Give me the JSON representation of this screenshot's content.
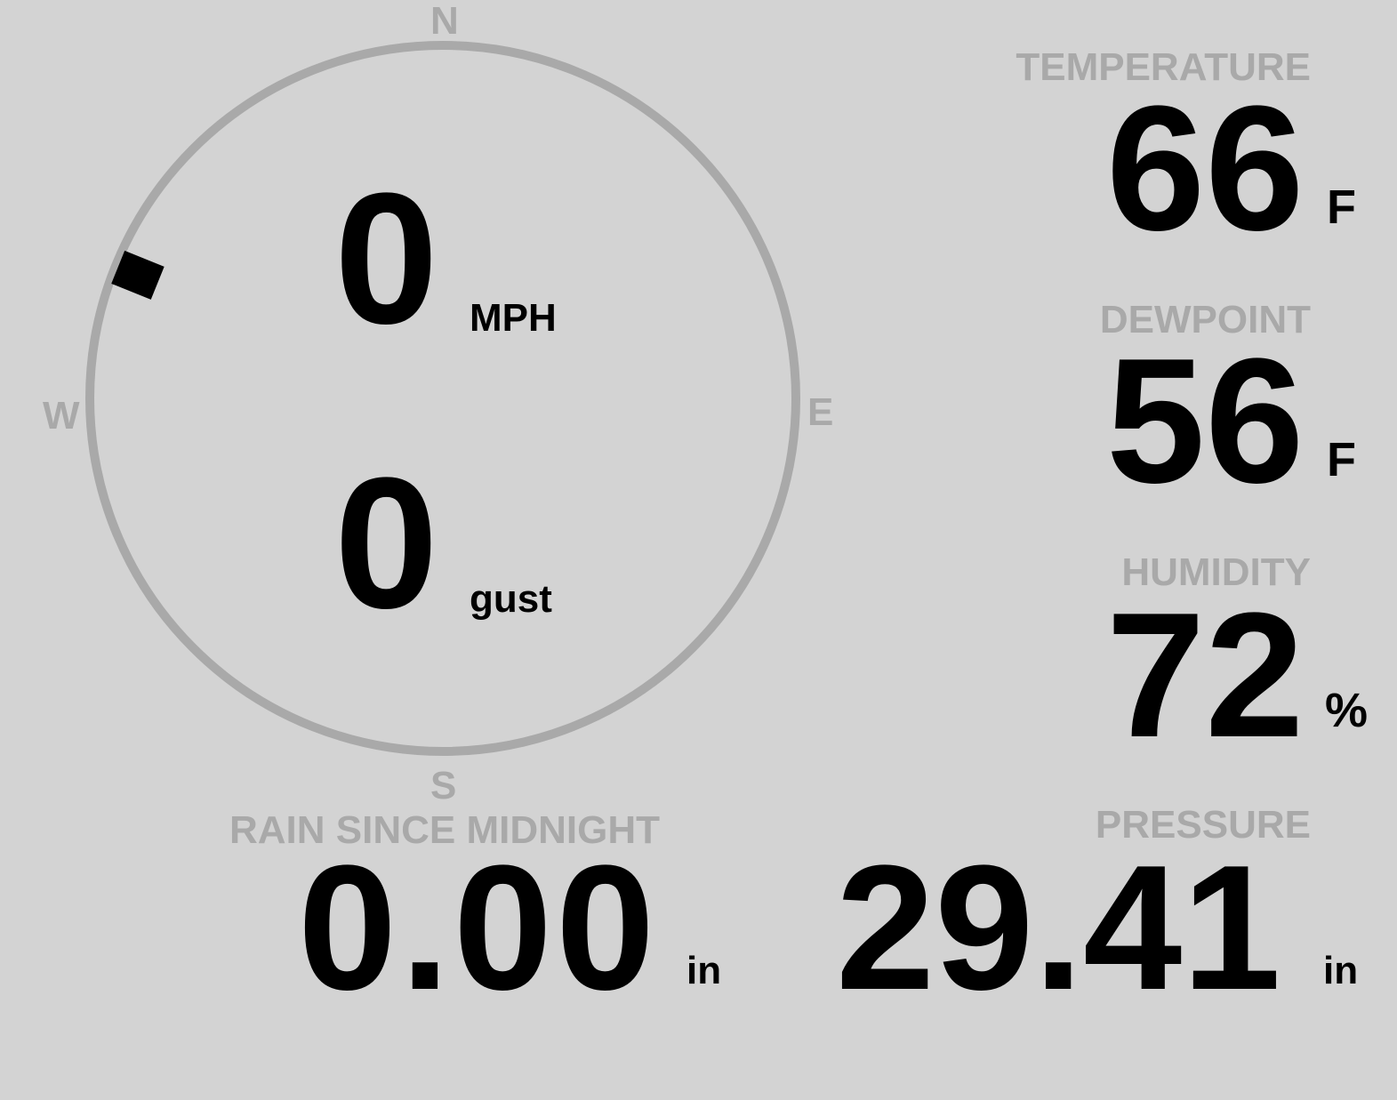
{
  "compass": {
    "n": "N",
    "e": "E",
    "s": "S",
    "w": "W",
    "wind_direction_deg": 292,
    "ring_color": "#a9a9a9"
  },
  "wind": {
    "speed": "0",
    "speed_unit": "MPH",
    "gust": "0",
    "gust_unit": "gust"
  },
  "temperature": {
    "label": "TEMPERATURE",
    "value": "66",
    "unit": "F"
  },
  "dewpoint": {
    "label": "DEWPOINT",
    "value": "56",
    "unit": "F"
  },
  "humidity": {
    "label": "HUMIDITY",
    "value": "72",
    "unit": "%"
  },
  "rain": {
    "label": "RAIN SINCE MIDNIGHT",
    "value": "0.00",
    "unit": "in"
  },
  "pressure": {
    "label": "PRESSURE",
    "value": "29.41",
    "unit": "in"
  },
  "colors": {
    "background": "#d3d3d3",
    "label": "#a9a9a9",
    "value": "#000000"
  }
}
